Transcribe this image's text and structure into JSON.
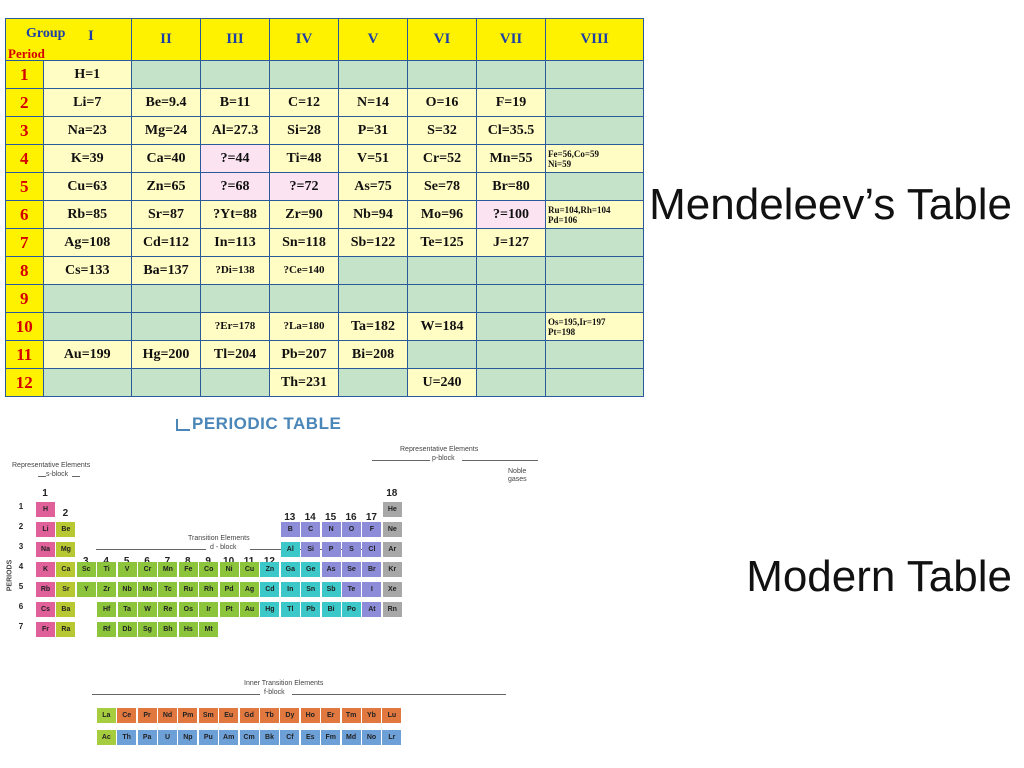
{
  "mendeleev": {
    "group_header": "Group",
    "period_header": "Period",
    "groups": [
      "I",
      "II",
      "III",
      "IV",
      "V",
      "VI",
      "VII",
      "VIII"
    ],
    "rows": [
      {
        "period": "1",
        "cells": [
          {
            "t": "H=1",
            "k": "c"
          },
          {
            "t": "",
            "k": "g"
          },
          {
            "t": "",
            "k": "g"
          },
          {
            "t": "",
            "k": "g"
          },
          {
            "t": "",
            "k": "g"
          },
          {
            "t": "",
            "k": "g"
          },
          {
            "t": "",
            "k": "g"
          },
          {
            "t": "",
            "k": "g"
          }
        ]
      },
      {
        "period": "2",
        "cells": [
          {
            "t": "Li=7",
            "k": "c"
          },
          {
            "t": "Be=9.4",
            "k": "c"
          },
          {
            "t": "B=11",
            "k": "c"
          },
          {
            "t": "C=12",
            "k": "c"
          },
          {
            "t": "N=14",
            "k": "c"
          },
          {
            "t": "O=16",
            "k": "c"
          },
          {
            "t": "F=19",
            "k": "c"
          },
          {
            "t": "",
            "k": "g"
          }
        ]
      },
      {
        "period": "3",
        "cells": [
          {
            "t": "Na=23",
            "k": "c"
          },
          {
            "t": "Mg=24",
            "k": "c"
          },
          {
            "t": "Al=27.3",
            "k": "c"
          },
          {
            "t": "Si=28",
            "k": "c"
          },
          {
            "t": "P=31",
            "k": "c"
          },
          {
            "t": "S=32",
            "k": "c"
          },
          {
            "t": "Cl=35.5",
            "k": "c"
          },
          {
            "t": "",
            "k": "g"
          }
        ]
      },
      {
        "period": "4",
        "cells": [
          {
            "t": "K=39",
            "k": "c"
          },
          {
            "t": "Ca=40",
            "k": "c"
          },
          {
            "t": "?=44",
            "k": "p"
          },
          {
            "t": "Ti=48",
            "k": "c"
          },
          {
            "t": "V=51",
            "k": "c"
          },
          {
            "t": "Cr=52",
            "k": "c"
          },
          {
            "t": "Mn=55",
            "k": "c"
          },
          {
            "t": "Fe=56,Co=59 Ni=59",
            "k": "c tiny"
          }
        ]
      },
      {
        "period": "5",
        "cells": [
          {
            "t": "Cu=63",
            "k": "c"
          },
          {
            "t": "Zn=65",
            "k": "c"
          },
          {
            "t": "?=68",
            "k": "p"
          },
          {
            "t": "?=72",
            "k": "p"
          },
          {
            "t": "As=75",
            "k": "c"
          },
          {
            "t": "Se=78",
            "k": "c"
          },
          {
            "t": "Br=80",
            "k": "c"
          },
          {
            "t": "",
            "k": "g"
          }
        ]
      },
      {
        "period": "6",
        "cells": [
          {
            "t": "Rb=85",
            "k": "c"
          },
          {
            "t": "Sr=87",
            "k": "c"
          },
          {
            "t": "?Yt=88",
            "k": "c"
          },
          {
            "t": "Zr=90",
            "k": "c"
          },
          {
            "t": "Nb=94",
            "k": "c"
          },
          {
            "t": "Mo=96",
            "k": "c"
          },
          {
            "t": "?=100",
            "k": "p"
          },
          {
            "t": "Ru=104,Rh=104 Pd=106",
            "k": "c tiny"
          }
        ]
      },
      {
        "period": "7",
        "cells": [
          {
            "t": "Ag=108",
            "k": "c"
          },
          {
            "t": "Cd=112",
            "k": "c"
          },
          {
            "t": "In=113",
            "k": "c"
          },
          {
            "t": "Sn=118",
            "k": "c"
          },
          {
            "t": "Sb=122",
            "k": "c"
          },
          {
            "t": "Te=125",
            "k": "c"
          },
          {
            "t": "J=127",
            "k": "c"
          },
          {
            "t": "",
            "k": "g"
          }
        ]
      },
      {
        "period": "8",
        "cells": [
          {
            "t": "Cs=133",
            "k": "c"
          },
          {
            "t": "Ba=137",
            "k": "c"
          },
          {
            "t": "?Di=138",
            "k": "c small"
          },
          {
            "t": "?Ce=140",
            "k": "c small"
          },
          {
            "t": "",
            "k": "g"
          },
          {
            "t": "",
            "k": "g"
          },
          {
            "t": "",
            "k": "g"
          },
          {
            "t": "",
            "k": "g"
          }
        ]
      },
      {
        "period": "9",
        "cells": [
          {
            "t": "",
            "k": "g"
          },
          {
            "t": "",
            "k": "g"
          },
          {
            "t": "",
            "k": "g"
          },
          {
            "t": "",
            "k": "g"
          },
          {
            "t": "",
            "k": "g"
          },
          {
            "t": "",
            "k": "g"
          },
          {
            "t": "",
            "k": "g"
          },
          {
            "t": "",
            "k": "g"
          }
        ]
      },
      {
        "period": "10",
        "cells": [
          {
            "t": "",
            "k": "g"
          },
          {
            "t": "",
            "k": "g"
          },
          {
            "t": "?Er=178",
            "k": "c small"
          },
          {
            "t": "?La=180",
            "k": "c small"
          },
          {
            "t": "Ta=182",
            "k": "c"
          },
          {
            "t": "W=184",
            "k": "c"
          },
          {
            "t": "",
            "k": "g"
          },
          {
            "t": "Os=195,Ir=197 Pt=198",
            "k": "c tiny"
          }
        ]
      },
      {
        "period": "11",
        "cells": [
          {
            "t": "Au=199",
            "k": "c"
          },
          {
            "t": "Hg=200",
            "k": "c"
          },
          {
            "t": "Tl=204",
            "k": "c"
          },
          {
            "t": "Pb=207",
            "k": "c"
          },
          {
            "t": "Bi=208",
            "k": "c"
          },
          {
            "t": "",
            "k": "g"
          },
          {
            "t": "",
            "k": "g"
          },
          {
            "t": "",
            "k": "g"
          }
        ]
      },
      {
        "period": "12",
        "cells": [
          {
            "t": "",
            "k": "g"
          },
          {
            "t": "",
            "k": "g"
          },
          {
            "t": "",
            "k": "g"
          },
          {
            "t": "Th=231",
            "k": "c"
          },
          {
            "t": "",
            "k": "g"
          },
          {
            "t": "U=240",
            "k": "c"
          },
          {
            "t": "",
            "k": "g"
          },
          {
            "t": "",
            "k": "g"
          }
        ]
      }
    ]
  },
  "labels": {
    "mendeleev": "Mendeleev’s Table",
    "modern": "Modern Table"
  },
  "modern": {
    "title": "PERIODIC TABLE",
    "rep_left": "Representative Elements",
    "s_block": "s-block",
    "rep_right": "Representative Elements",
    "p_block": "p-block",
    "noble": "Noble gases",
    "transition": "Transition Elements",
    "d_block": "d - block",
    "inner": "Inner Transition Elements",
    "f_block": "f-block",
    "periods_label": "PERIODS",
    "group_numbers": [
      "1",
      "2",
      "3",
      "4",
      "5",
      "6",
      "7",
      "8",
      "9",
      "10",
      "11",
      "12",
      "13",
      "14",
      "15",
      "16",
      "17",
      "18"
    ],
    "period_numbers": [
      "1",
      "2",
      "3",
      "4",
      "5",
      "6",
      "7"
    ],
    "colors": {
      "alkali": "#e0609a",
      "alkaline": "#b8c832",
      "transition": "#8cc43c",
      "transition_d": "#a6cc40",
      "metal": "#3cc8c8",
      "nonmetal": "#8c8cd8",
      "noble": "#a8a8a8",
      "lanthanide": "#e07840",
      "actinide": "#6ea0d8"
    },
    "rows": [
      [
        {
          "s": "H",
          "c": "alkali",
          "g": 1
        },
        {
          "s": "He",
          "c": "noble",
          "g": 18
        }
      ],
      [
        {
          "s": "Li",
          "c": "alkali",
          "g": 1
        },
        {
          "s": "Be",
          "c": "alkaline",
          "g": 2
        },
        {
          "s": "B",
          "c": "nonmetal",
          "g": 13
        },
        {
          "s": "C",
          "c": "nonmetal",
          "g": 14
        },
        {
          "s": "N",
          "c": "nonmetal",
          "g": 15
        },
        {
          "s": "O",
          "c": "nonmetal",
          "g": 16
        },
        {
          "s": "F",
          "c": "nonmetal",
          "g": 17
        },
        {
          "s": "Ne",
          "c": "noble",
          "g": 18
        }
      ],
      [
        {
          "s": "Na",
          "c": "alkali",
          "g": 1
        },
        {
          "s": "Mg",
          "c": "alkaline",
          "g": 2
        },
        {
          "s": "Al",
          "c": "metal",
          "g": 13
        },
        {
          "s": "Si",
          "c": "nonmetal",
          "g": 14
        },
        {
          "s": "P",
          "c": "nonmetal",
          "g": 15
        },
        {
          "s": "S",
          "c": "nonmetal",
          "g": 16
        },
        {
          "s": "Cl",
          "c": "nonmetal",
          "g": 17
        },
        {
          "s": "Ar",
          "c": "noble",
          "g": 18
        }
      ],
      [
        {
          "s": "K",
          "c": "alkali",
          "g": 1
        },
        {
          "s": "Ca",
          "c": "alkaline",
          "g": 2
        },
        {
          "s": "Sc",
          "c": "transition",
          "g": 3
        },
        {
          "s": "Ti",
          "c": "transition",
          "g": 4
        },
        {
          "s": "V",
          "c": "transition",
          "g": 5
        },
        {
          "s": "Cr",
          "c": "transition",
          "g": 6
        },
        {
          "s": "Mn",
          "c": "transition",
          "g": 7
        },
        {
          "s": "Fe",
          "c": "transition",
          "g": 8
        },
        {
          "s": "Co",
          "c": "transition",
          "g": 9
        },
        {
          "s": "Ni",
          "c": "transition",
          "g": 10
        },
        {
          "s": "Cu",
          "c": "transition",
          "g": 11
        },
        {
          "s": "Zn",
          "c": "metal",
          "g": 12
        },
        {
          "s": "Ga",
          "c": "metal",
          "g": 13
        },
        {
          "s": "Ge",
          "c": "metal",
          "g": 14
        },
        {
          "s": "As",
          "c": "nonmetal",
          "g": 15
        },
        {
          "s": "Se",
          "c": "nonmetal",
          "g": 16
        },
        {
          "s": "Br",
          "c": "nonmetal",
          "g": 17
        },
        {
          "s": "Kr",
          "c": "noble",
          "g": 18
        }
      ],
      [
        {
          "s": "Rb",
          "c": "alkali",
          "g": 1
        },
        {
          "s": "Sr",
          "c": "alkaline",
          "g": 2
        },
        {
          "s": "Y",
          "c": "transition",
          "g": 3
        },
        {
          "s": "Zr",
          "c": "transition",
          "g": 4
        },
        {
          "s": "Nb",
          "c": "transition",
          "g": 5
        },
        {
          "s": "Mo",
          "c": "transition",
          "g": 6
        },
        {
          "s": "Tc",
          "c": "transition",
          "g": 7
        },
        {
          "s": "Ru",
          "c": "transition",
          "g": 8
        },
        {
          "s": "Rh",
          "c": "transition",
          "g": 9
        },
        {
          "s": "Pd",
          "c": "transition",
          "g": 10
        },
        {
          "s": "Ag",
          "c": "transition",
          "g": 11
        },
        {
          "s": "Cd",
          "c": "metal",
          "g": 12
        },
        {
          "s": "In",
          "c": "metal",
          "g": 13
        },
        {
          "s": "Sn",
          "c": "metal",
          "g": 14
        },
        {
          "s": "Sb",
          "c": "metal",
          "g": 15
        },
        {
          "s": "Te",
          "c": "nonmetal",
          "g": 16
        },
        {
          "s": "I",
          "c": "nonmetal",
          "g": 17
        },
        {
          "s": "Xe",
          "c": "noble",
          "g": 18
        }
      ],
      [
        {
          "s": "Cs",
          "c": "alkali",
          "g": 1
        },
        {
          "s": "Ba",
          "c": "alkaline",
          "g": 2
        },
        {
          "s": "Hf",
          "c": "transition",
          "g": 4
        },
        {
          "s": "Ta",
          "c": "transition",
          "g": 5
        },
        {
          "s": "W",
          "c": "transition",
          "g": 6
        },
        {
          "s": "Re",
          "c": "transition",
          "g": 7
        },
        {
          "s": "Os",
          "c": "transition",
          "g": 8
        },
        {
          "s": "Ir",
          "c": "transition",
          "g": 9
        },
        {
          "s": "Pt",
          "c": "transition",
          "g": 10
        },
        {
          "s": "Au",
          "c": "transition",
          "g": 11
        },
        {
          "s": "Hg",
          "c": "metal",
          "g": 12
        },
        {
          "s": "Tl",
          "c": "metal",
          "g": 13
        },
        {
          "s": "Pb",
          "c": "metal",
          "g": 14
        },
        {
          "s": "Bi",
          "c": "metal",
          "g": 15
        },
        {
          "s": "Po",
          "c": "metal",
          "g": 16
        },
        {
          "s": "At",
          "c": "nonmetal",
          "g": 17
        },
        {
          "s": "Rn",
          "c": "noble",
          "g": 18
        }
      ],
      [
        {
          "s": "Fr",
          "c": "alkali",
          "g": 1
        },
        {
          "s": "Ra",
          "c": "alkaline",
          "g": 2
        },
        {
          "s": "Rf",
          "c": "transition",
          "g": 4
        },
        {
          "s": "Db",
          "c": "transition",
          "g": 5
        },
        {
          "s": "Sg",
          "c": "transition",
          "g": 6
        },
        {
          "s": "Bh",
          "c": "transition",
          "g": 7
        },
        {
          "s": "Hs",
          "c": "transition",
          "g": 8
        },
        {
          "s": "Mt",
          "c": "transition",
          "g": 9
        }
      ]
    ],
    "lanthanides": [
      "La",
      "Ce",
      "Pr",
      "Nd",
      "Pm",
      "Sm",
      "Eu",
      "Gd",
      "Tb",
      "Dy",
      "Ho",
      "Er",
      "Tm",
      "Yb",
      "Lu"
    ],
    "actinides": [
      "Ac",
      "Th",
      "Pa",
      "U",
      "Np",
      "Pu",
      "Am",
      "Cm",
      "Bk",
      "Cf",
      "Es",
      "Fm",
      "Md",
      "No",
      "Lr"
    ]
  }
}
